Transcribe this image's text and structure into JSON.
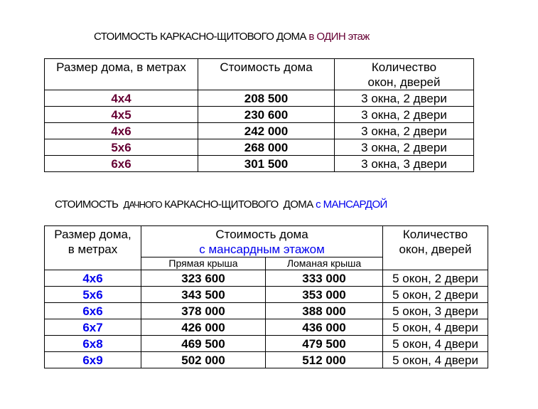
{
  "table1": {
    "title_main": "СТОИМОСТЬ КАРКАСНО-ЩИТОВОГО ДОМА",
    "title_accent": " в ОДИН этаж",
    "headers": {
      "size": "Размер дома,  в метрах",
      "price": "Стоимость дома",
      "qty_line1": "Количество",
      "qty_line2": "окон, дверей"
    },
    "rows": [
      {
        "size": "4x4",
        "price": "208 500",
        "qty": "3 окна, 2 двери"
      },
      {
        "size": "4x5",
        "price": "230 600",
        "qty": "3 окна, 2 двери"
      },
      {
        "size": "4x6",
        "price": "242 000",
        "qty": "3 окна, 2 двери"
      },
      {
        "size": "5x6",
        "price": "268 000",
        "qty": "3 окна, 2 двери"
      },
      {
        "size": "6x6",
        "price": "301 500",
        "qty": "3 окна, 3 двери"
      }
    ]
  },
  "table2": {
    "title_part1": "СТОИМОСТЬ  ",
    "title_part2": "ДАЧНОГО",
    "title_part3": " КАРКАСНО-ЩИТОВОГО  ДОМА ",
    "title_accent": "с МАНСАРДОЙ",
    "headers": {
      "size_line1": "Размер дома,",
      "size_line2": "в метрах",
      "price_line1": "Стоимость дома",
      "price_line2": "с мансардным этажом",
      "straight_roof": "Прямая крыша",
      "broken_roof": "Ломаная крыша",
      "qty_line1": "Количество",
      "qty_line2": "окон, дверей"
    },
    "rows": [
      {
        "size": "4x6",
        "straight": "323 600",
        "broken": "333 000",
        "qty": "5 окон, 2 двери"
      },
      {
        "size": "5x6",
        "straight": "343 500",
        "broken": "353 000",
        "qty": "5 окон, 2 двери"
      },
      {
        "size": "6x6",
        "straight": "378 000",
        "broken": "388 000",
        "qty": "5 окон, 3 двери"
      },
      {
        "size": "6x7",
        "straight": "426 000",
        "broken": "436 000",
        "qty": "5 окон, 4 двери"
      },
      {
        "size": "6x8",
        "straight": "469 500",
        "broken": "479 500",
        "qty": "5 окон, 4 двери"
      },
      {
        "size": "6x9",
        "straight": "502 000",
        "broken": "512 000",
        "qty": "5 окон, 4 двери"
      }
    ]
  },
  "colors": {
    "maroon": "#660033",
    "blue": "#0000ee"
  }
}
